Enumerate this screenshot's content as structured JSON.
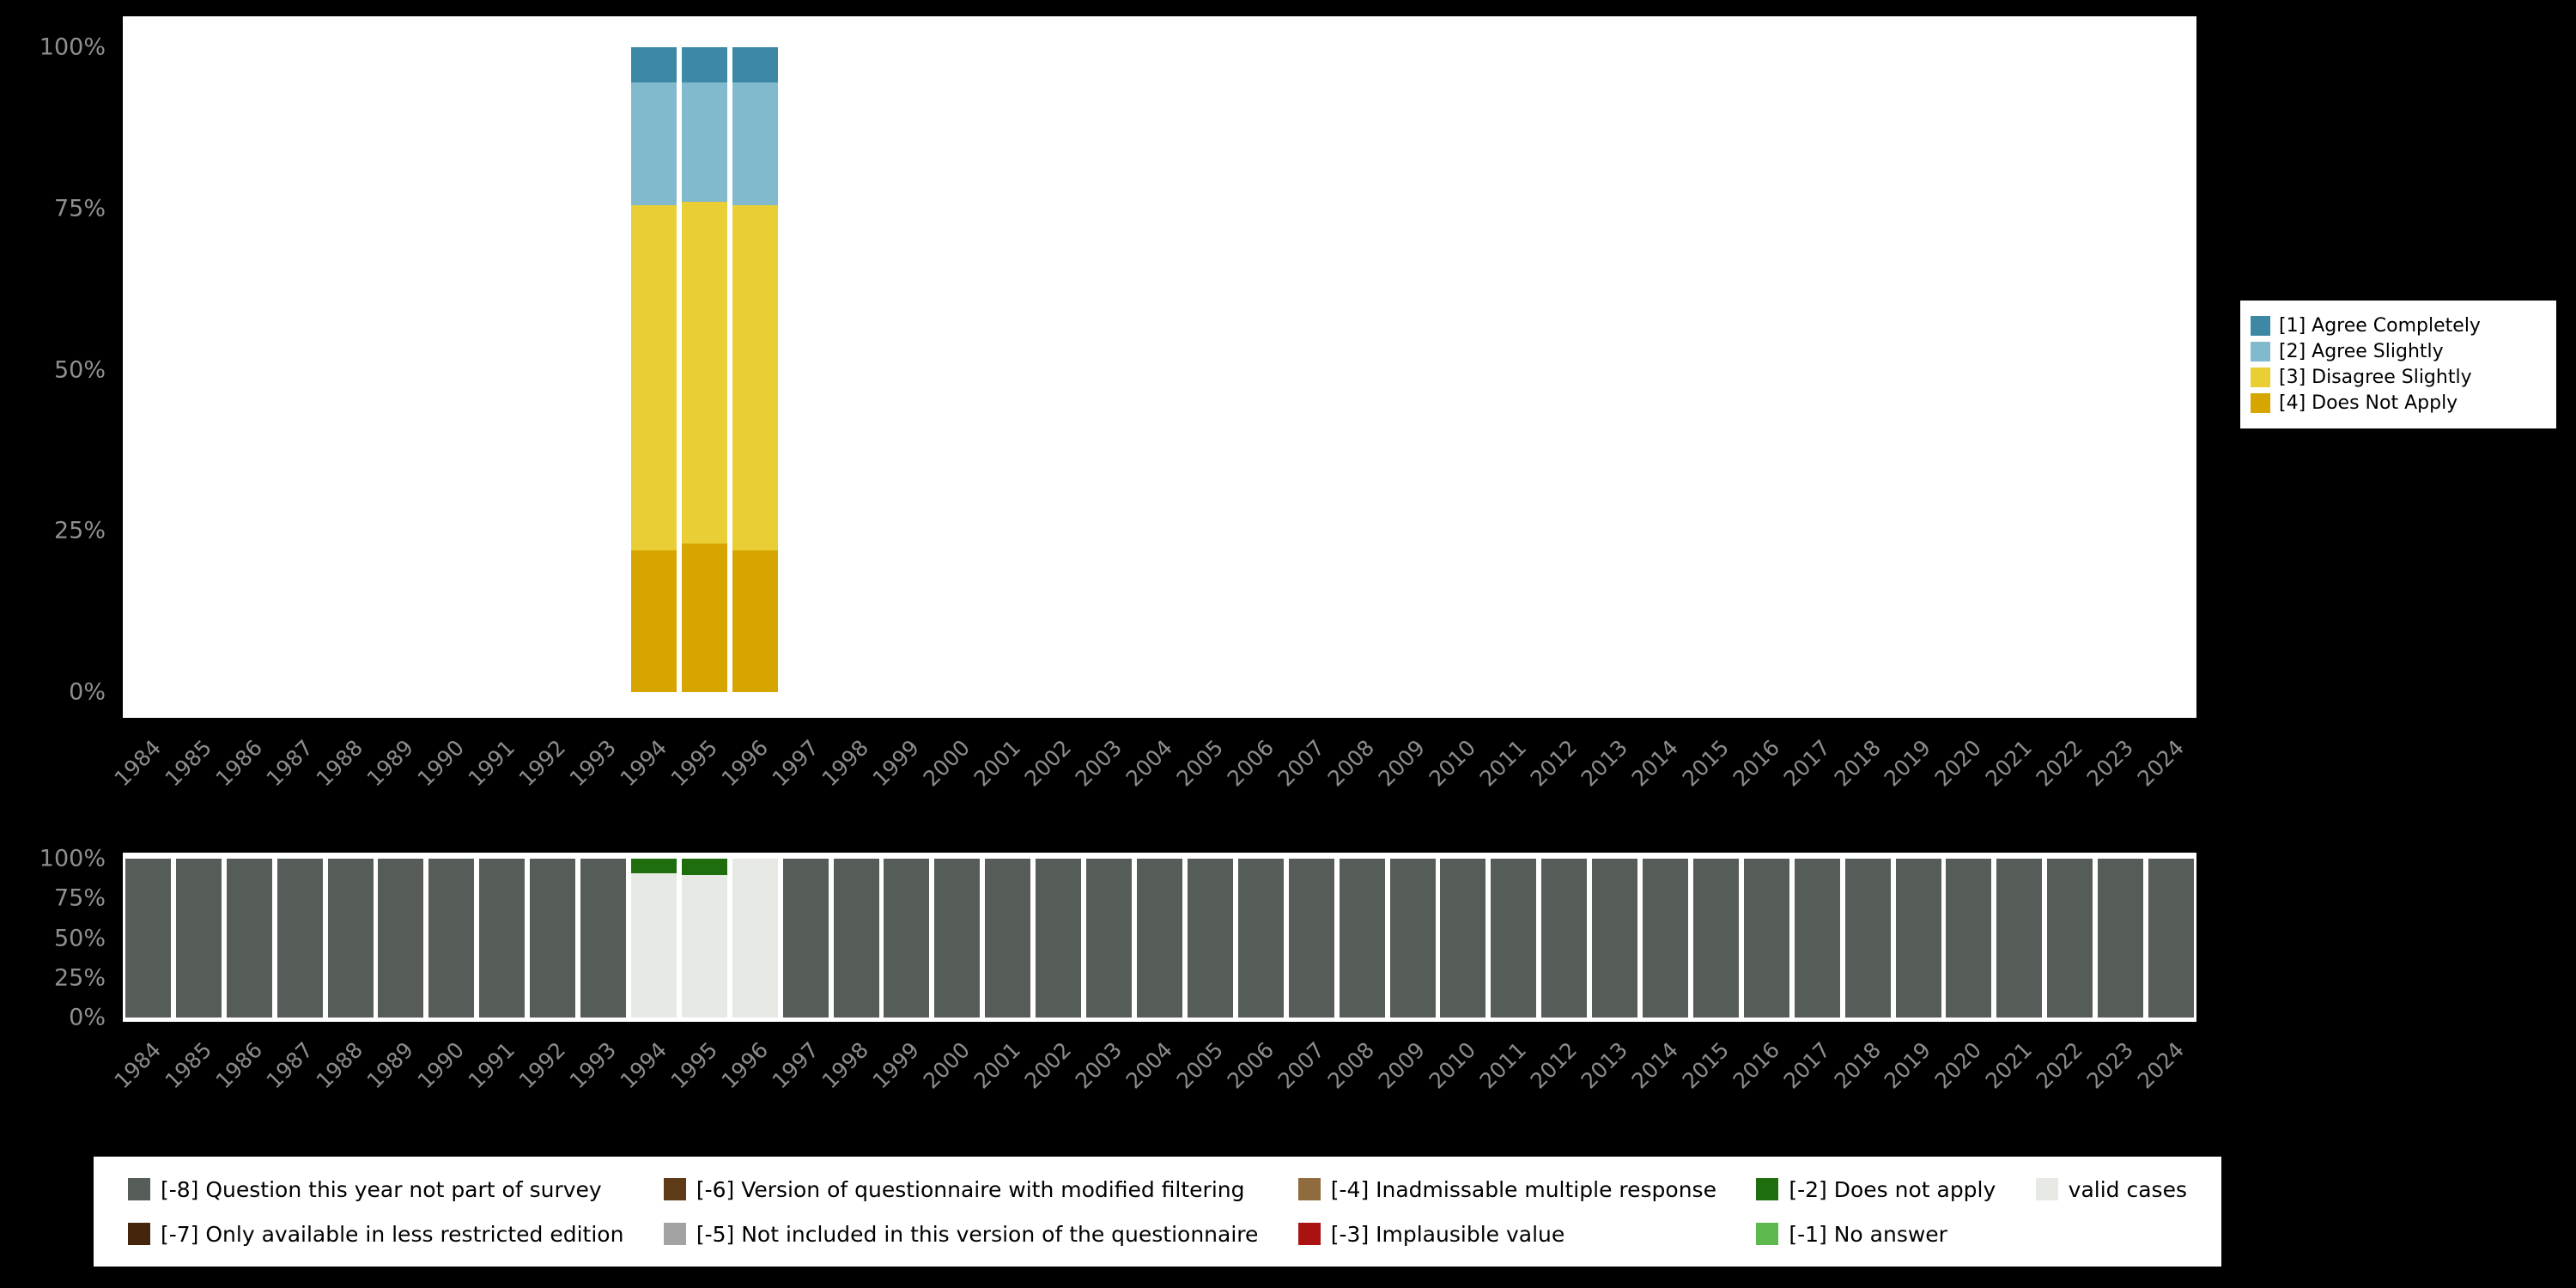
{
  "chart_data": [
    {
      "type": "bar",
      "stacked": true,
      "title": "",
      "xlabel": "",
      "ylabel": "",
      "ylim": [
        0,
        100
      ],
      "grid": false,
      "legend_position": "right",
      "years": [
        1984,
        1985,
        1986,
        1987,
        1988,
        1989,
        1990,
        1991,
        1992,
        1993,
        1994,
        1995,
        1996,
        1997,
        1998,
        1999,
        2000,
        2001,
        2002,
        2003,
        2004,
        2005,
        2006,
        2007,
        2008,
        2009,
        2010,
        2011,
        2012,
        2013,
        2014,
        2015,
        2016,
        2017,
        2018,
        2019,
        2020,
        2021,
        2022,
        2023,
        2024
      ],
      "yticks": [
        {
          "label": "100%",
          "pct": 100
        },
        {
          "label": "75%",
          "pct": 75
        },
        {
          "label": "50%",
          "pct": 50
        },
        {
          "label": "25%",
          "pct": 25
        },
        {
          "label": "0%",
          "pct": 0
        }
      ],
      "series_bottom_to_top": [
        {
          "name": "[4] Does Not Apply",
          "color": "#d7a500",
          "values": {
            "1994": 22,
            "1995": 23,
            "1996": 22
          }
        },
        {
          "name": "[3] Disagree Slightly",
          "color": "#e9cf35",
          "values": {
            "1994": 53.5,
            "1995": 53,
            "1996": 53.5
          }
        },
        {
          "name": "[2] Agree Slightly",
          "color": "#82bacd",
          "values": {
            "1994": 19,
            "1995": 18.5,
            "1996": 19
          }
        },
        {
          "name": "[1] Agree Completely",
          "color": "#3d89a5",
          "values": {
            "1994": 5.5,
            "1995": 5.5,
            "1996": 5.5
          }
        }
      ],
      "legend": [
        {
          "label": "[1] Agree Completely",
          "color": "#3d89a5"
        },
        {
          "label": "[2] Agree Slightly",
          "color": "#82bacd"
        },
        {
          "label": "[3] Disagree Slightly",
          "color": "#e9cf35"
        },
        {
          "label": "[4] Does Not Apply",
          "color": "#d7a500"
        }
      ]
    },
    {
      "type": "bar",
      "stacked": true,
      "title": "",
      "xlabel": "",
      "ylabel": "",
      "ylim": [
        0,
        100
      ],
      "grid": false,
      "legend_position": "bottom",
      "years": [
        1984,
        1985,
        1986,
        1987,
        1988,
        1989,
        1990,
        1991,
        1992,
        1993,
        1994,
        1995,
        1996,
        1997,
        1998,
        1999,
        2000,
        2001,
        2002,
        2003,
        2004,
        2005,
        2006,
        2007,
        2008,
        2009,
        2010,
        2011,
        2012,
        2013,
        2014,
        2015,
        2016,
        2017,
        2018,
        2019,
        2020,
        2021,
        2022,
        2023,
        2024
      ],
      "yticks": [
        {
          "label": "100%",
          "pct": 100
        },
        {
          "label": "75%",
          "pct": 75
        },
        {
          "label": "50%",
          "pct": 50
        },
        {
          "label": "25%",
          "pct": 25
        },
        {
          "label": "0%",
          "pct": 0
        }
      ],
      "series_bottom_to_top": [
        {
          "name": "valid cases",
          "color": "#e7eae4",
          "values": {
            "1994": 91,
            "1995": 90,
            "1996": 100
          }
        },
        {
          "name": "[-2] Does not apply",
          "color": "#1f6e0e",
          "values": {
            "1994": 9,
            "1995": 10
          }
        },
        {
          "name": "[-8] Question this year not part of survey",
          "color": "#565c57",
          "values": {
            "1984": 100,
            "1985": 100,
            "1986": 100,
            "1987": 100,
            "1988": 100,
            "1989": 100,
            "1990": 100,
            "1991": 100,
            "1992": 100,
            "1993": 100,
            "1997": 100,
            "1998": 100,
            "1999": 100,
            "2000": 100,
            "2001": 100,
            "2002": 100,
            "2003": 100,
            "2004": 100,
            "2005": 100,
            "2006": 100,
            "2007": 100,
            "2008": 100,
            "2009": 100,
            "2010": 100,
            "2011": 100,
            "2012": 100,
            "2013": 100,
            "2014": 100,
            "2015": 100,
            "2016": 100,
            "2017": 100,
            "2018": 100,
            "2019": 100,
            "2020": 100,
            "2021": 100,
            "2022": 100,
            "2023": 100,
            "2024": 100
          }
        }
      ]
    }
  ],
  "missing_legend": [
    {
      "label": "[-8] Question this year not part of survey",
      "color": "#565c57"
    },
    {
      "label": "[-7] Only available in less restricted edition",
      "color": "#45260c"
    },
    {
      "label": "[-6] Version of questionnaire with modified filtering",
      "color": "#5e3a17"
    },
    {
      "label": "[-5] Not included in this version of the questionnaire",
      "color": "#a3a3a3"
    },
    {
      "label": "[-4] Inadmissable multiple response",
      "color": "#8f6b3d"
    },
    {
      "label": "[-3] Implausible value",
      "color": "#aa1111"
    },
    {
      "label": "[-2] Does not apply",
      "color": "#1f6e0e"
    },
    {
      "label": "[-1] No answer",
      "color": "#5db84d"
    },
    {
      "label": "valid cases",
      "color": "#e7eae4"
    }
  ],
  "colors": {
    "background": "#000000",
    "plot_background": "#ffffff",
    "axis_text": "#8c8c8c",
    "legend_text": "#000000"
  }
}
